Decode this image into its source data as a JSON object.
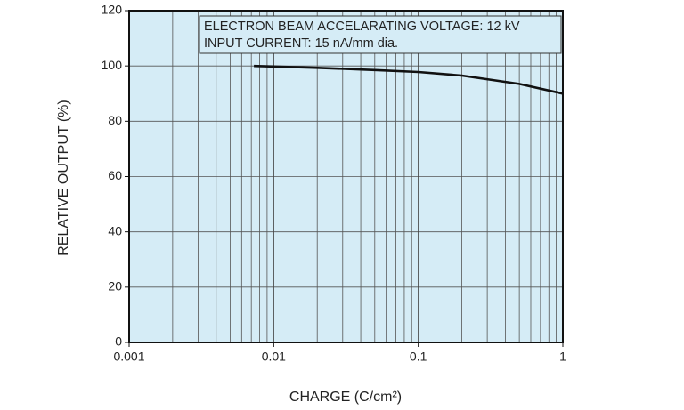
{
  "chart_data": {
    "type": "line",
    "x_label": "CHARGE (C/cm²)",
    "y_label": "RELATIVE OUTPUT (%)",
    "annotations": [
      "ELECTRON BEAM ACCELARATING VOLTAGE: 12 kV",
      "INPUT CURRENT: 15 nA/mm dia."
    ],
    "x": [
      0.0073,
      0.01,
      0.02,
      0.05,
      0.1,
      0.2,
      0.5,
      1
    ],
    "series": [
      {
        "color": "#111111",
        "values": [
          100,
          99.8,
          99.3,
          98.5,
          97.8,
          96.5,
          93.5,
          90
        ]
      }
    ],
    "x_log": true,
    "grid": true,
    "background": "#d5ecf6",
    "xlim": [
      0.001,
      1
    ],
    "xticks": [
      0.001,
      0.01,
      0.1,
      1
    ],
    "ylim": [
      0,
      120
    ],
    "yticks": [
      0,
      20,
      40,
      60,
      80,
      100,
      120
    ]
  }
}
